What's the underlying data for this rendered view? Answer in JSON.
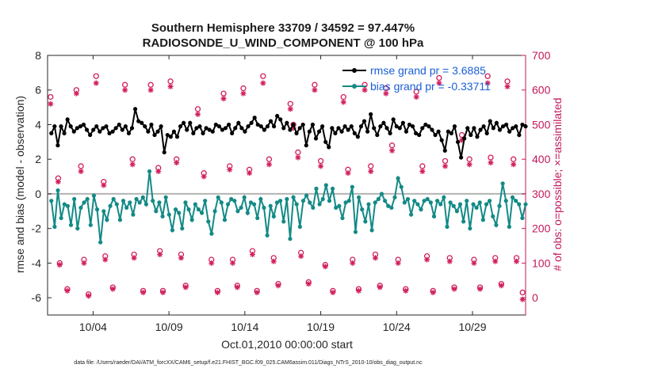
{
  "chart_data": {
    "type": "line",
    "title": "Southern Hemisphere 33709 / 34592 = 97.447%",
    "subtitle": "RADIOSONDE_U_WIND_COMPONENT @ 100 hPa",
    "xlabel": "Oct.01,2010 00:00:00 start",
    "ylabel_left": "rmse and bias (model - observation)",
    "ylabel_right": "# of obs: o=possible; ×=assimilated",
    "footer": "data file: /Users/raeder/DAI/ATM_forcXX/CAM6_setup/f.e21.FHIST_BGC.f09_025.CAM6assim.011/Diags_NTrS_2010-10/obs_diag_output.nc",
    "xlim": [
      1.0,
      32.5
    ],
    "ylim_left": [
      -7,
      8
    ],
    "ylim_right": [
      -50,
      700
    ],
    "x_ticks": [
      4,
      9,
      14,
      19,
      24,
      29
    ],
    "x_tick_labels": [
      "10/04",
      "10/09",
      "10/14",
      "10/19",
      "10/24",
      "10/29"
    ],
    "y_left_ticks": [
      -6,
      -4,
      -2,
      0,
      2,
      4,
      6,
      8
    ],
    "y_right_ticks": [
      0,
      100,
      200,
      300,
      400,
      500,
      600,
      700
    ],
    "legend": {
      "position": "top-right",
      "entries": [
        "rmse grand pr = 3.6885",
        "bias grand pr = -0.33711"
      ]
    },
    "colors": {
      "rmse": "#000000",
      "bias": "#138a86",
      "obs": "#d11f5d",
      "zero_line": "#b3b3b3",
      "right_axis": "#c2185b"
    },
    "series": [
      {
        "name": "rmse",
        "values": [
          3.5,
          3.9,
          2.8,
          3.9,
          3.5,
          4.3,
          3.9,
          3.6,
          3.8,
          3.9,
          4.0,
          3.7,
          3.4,
          3.7,
          3.9,
          3.6,
          3.8,
          3.9,
          3.5,
          3.6,
          3.8,
          4.0,
          3.7,
          3.9,
          3.5,
          3.8,
          4.9,
          4.2,
          4.1,
          3.9,
          3.6,
          4.0,
          3.4,
          3.6,
          3.9,
          2.4,
          3.4,
          3.3,
          3.6,
          3.3,
          3.9,
          4.1,
          3.7,
          4.1,
          3.5,
          3.8,
          3.9,
          3.5,
          3.8,
          3.7,
          3.6,
          4.0,
          3.9,
          3.7,
          3.8,
          4.0,
          3.5,
          3.8,
          4.1,
          3.8,
          3.6,
          3.9,
          4.1,
          4.4,
          4.0,
          3.9,
          3.7,
          3.9,
          4.2,
          3.9,
          4.5,
          4.3,
          3.8,
          4.1,
          3.7,
          4.0,
          3.5,
          3.8,
          4.0,
          2.8,
          3.6,
          4.0,
          3.2,
          3.6,
          3.9,
          3.0,
          2.7,
          3.8,
          3.5,
          3.8,
          3.6,
          3.9,
          3.7,
          3.9,
          3.5,
          3.3,
          3.9,
          4.2,
          3.6,
          4.6,
          3.8,
          3.4,
          3.9,
          4.1,
          3.8,
          3.5,
          4.3,
          3.9,
          3.8,
          4.1,
          3.6,
          4.0,
          3.9,
          3.5,
          3.4,
          3.8,
          4.0,
          3.9,
          3.7,
          3.4,
          3.6,
          3.1,
          2.5,
          3.6,
          3.5,
          3.9,
          3.0,
          2.1,
          3.2,
          3.8,
          3.4,
          3.8,
          3.3,
          3.7,
          3.9,
          3.5,
          4.2,
          3.8,
          4.1,
          3.7,
          3.9,
          4.0,
          3.6,
          3.8,
          3.9,
          3.4,
          4.0,
          3.9
        ]
      },
      {
        "name": "bias",
        "values": [
          -0.4,
          -1.9,
          0.2,
          -1.4,
          -0.6,
          -0.7,
          -1.8,
          -0.3,
          -2.0,
          -0.8,
          -0.5,
          -0.3,
          -1.8,
          -0.1,
          -0.9,
          -2.8,
          -1.0,
          -1.5,
          -0.7,
          -0.3,
          -0.6,
          -1.5,
          -0.4,
          -0.8,
          -0.5,
          -1.2,
          -0.3,
          -0.5,
          -0.2,
          -0.6,
          1.3,
          -0.4,
          -1.0,
          -0.5,
          -1.3,
          -0.2,
          -1.2,
          -2.1,
          -0.9,
          -1.1,
          -2.0,
          -0.5,
          -0.9,
          -1.5,
          -0.6,
          -0.9,
          -1.1,
          -0.4,
          -1.6,
          -2.3,
          -1.0,
          -0.2,
          -0.5,
          -1.5,
          -0.6,
          -0.3,
          -0.4,
          -1.0,
          -0.8,
          -0.2,
          -1.1,
          -0.5,
          -0.6,
          -1.4,
          -0.3,
          -0.8,
          -2.4,
          -0.7,
          -1.3,
          -0.5,
          -0.4,
          -1.6,
          -0.3,
          -2.6,
          -0.2,
          -0.6,
          -1.9,
          -0.4,
          -0.1,
          -0.5,
          -0.8,
          0.3,
          -0.6,
          -0.3,
          0.5,
          -0.4,
          0.3,
          -0.8,
          -0.7,
          -1.4,
          -0.5,
          -0.4,
          0.4,
          -2.2,
          -0.2,
          -0.9,
          -1.6,
          -0.6,
          -2.1,
          -0.5,
          -0.3,
          0.0,
          -0.4,
          -0.7,
          -0.8,
          -0.2,
          0.9,
          0.4,
          -0.5,
          -0.3,
          -1.2,
          -0.4,
          -0.6,
          -0.9,
          -0.4,
          -0.3,
          -0.5,
          -1.3,
          -0.4,
          -0.6,
          -0.2,
          -1.9,
          -0.5,
          -0.7,
          -1.0,
          -0.6,
          -1.6,
          -0.4,
          -2.0,
          -0.6,
          -0.8,
          -0.5,
          -1.5,
          -0.6,
          -0.4,
          -1.3,
          -1.8,
          -0.7,
          0.6,
          -0.4,
          -1.9,
          -0.2,
          -0.4,
          -0.6,
          -1.4,
          -0.6
        ]
      }
    ],
    "obs_possible": [
      {
        "x": 1.2,
        "n": 580
      },
      {
        "x": 1.7,
        "n": 345
      },
      {
        "x": 1.8,
        "n": 100
      },
      {
        "x": 2.3,
        "n": 25
      },
      {
        "x": 2.9,
        "n": 600
      },
      {
        "x": 3.2,
        "n": 380
      },
      {
        "x": 3.4,
        "n": 110
      },
      {
        "x": 3.7,
        "n": 10
      },
      {
        "x": 4.2,
        "n": 640
      },
      {
        "x": 4.7,
        "n": 335
      },
      {
        "x": 4.8,
        "n": 120
      },
      {
        "x": 5.3,
        "n": 30
      },
      {
        "x": 6.1,
        "n": 615
      },
      {
        "x": 6.6,
        "n": 400
      },
      {
        "x": 6.7,
        "n": 125
      },
      {
        "x": 7.3,
        "n": 20
      },
      {
        "x": 7.8,
        "n": 615
      },
      {
        "x": 8.3,
        "n": 375
      },
      {
        "x": 8.4,
        "n": 135
      },
      {
        "x": 8.6,
        "n": 20
      },
      {
        "x": 9.1,
        "n": 625
      },
      {
        "x": 9.5,
        "n": 400
      },
      {
        "x": 9.8,
        "n": 125
      },
      {
        "x": 10.1,
        "n": 35
      },
      {
        "x": 10.9,
        "n": 545
      },
      {
        "x": 11.3,
        "n": 360
      },
      {
        "x": 11.8,
        "n": 110
      },
      {
        "x": 12.2,
        "n": 20
      },
      {
        "x": 12.6,
        "n": 590
      },
      {
        "x": 13.0,
        "n": 380
      },
      {
        "x": 13.2,
        "n": 110
      },
      {
        "x": 13.5,
        "n": 35
      },
      {
        "x": 13.9,
        "n": 605
      },
      {
        "x": 14.3,
        "n": 370
      },
      {
        "x": 14.5,
        "n": 135
      },
      {
        "x": 14.8,
        "n": 20
      },
      {
        "x": 15.2,
        "n": 640
      },
      {
        "x": 15.6,
        "n": 400
      },
      {
        "x": 15.9,
        "n": 115
      },
      {
        "x": 16.2,
        "n": 40
      },
      {
        "x": 17.0,
        "n": 560
      },
      {
        "x": 17.2,
        "n": 500
      },
      {
        "x": 17.5,
        "n": 420
      },
      {
        "x": 17.7,
        "n": 130
      },
      {
        "x": 18.2,
        "n": 45
      },
      {
        "x": 18.6,
        "n": 615
      },
      {
        "x": 19.0,
        "n": 395
      },
      {
        "x": 19.3,
        "n": 95
      },
      {
        "x": 19.8,
        "n": 20
      },
      {
        "x": 20.5,
        "n": 580
      },
      {
        "x": 20.8,
        "n": 370
      },
      {
        "x": 21.1,
        "n": 110
      },
      {
        "x": 21.5,
        "n": 25
      },
      {
        "x": 21.9,
        "n": 615
      },
      {
        "x": 22.3,
        "n": 380
      },
      {
        "x": 22.6,
        "n": 125
      },
      {
        "x": 22.9,
        "n": 35
      },
      {
        "x": 23.3,
        "n": 605
      },
      {
        "x": 23.7,
        "n": 440
      },
      {
        "x": 24.1,
        "n": 110
      },
      {
        "x": 24.6,
        "n": 25
      },
      {
        "x": 25.3,
        "n": 595
      },
      {
        "x": 25.7,
        "n": 380
      },
      {
        "x": 26.0,
        "n": 120
      },
      {
        "x": 26.4,
        "n": 20
      },
      {
        "x": 26.8,
        "n": 635
      },
      {
        "x": 27.2,
        "n": 395
      },
      {
        "x": 27.5,
        "n": 115
      },
      {
        "x": 27.8,
        "n": 30
      },
      {
        "x": 28.3,
        "n": 470
      },
      {
        "x": 28.8,
        "n": 400
      },
      {
        "x": 29.1,
        "n": 110
      },
      {
        "x": 29.5,
        "n": 30
      },
      {
        "x": 30.0,
        "n": 640
      },
      {
        "x": 30.2,
        "n": 405
      },
      {
        "x": 30.5,
        "n": 115
      },
      {
        "x": 30.9,
        "n": 40
      },
      {
        "x": 31.3,
        "n": 625
      },
      {
        "x": 31.7,
        "n": 400
      },
      {
        "x": 31.9,
        "n": 115
      },
      {
        "x": 32.3,
        "n": 15
      }
    ],
    "obs_assimilated": [
      {
        "x": 1.2,
        "n": 560
      },
      {
        "x": 1.7,
        "n": 335
      },
      {
        "x": 1.8,
        "n": 95
      },
      {
        "x": 2.3,
        "n": 20
      },
      {
        "x": 2.9,
        "n": 590
      },
      {
        "x": 3.2,
        "n": 365
      },
      {
        "x": 3.4,
        "n": 100
      },
      {
        "x": 3.7,
        "n": 5
      },
      {
        "x": 4.2,
        "n": 620
      },
      {
        "x": 4.7,
        "n": 325
      },
      {
        "x": 4.8,
        "n": 110
      },
      {
        "x": 5.3,
        "n": 25
      },
      {
        "x": 6.1,
        "n": 600
      },
      {
        "x": 6.6,
        "n": 385
      },
      {
        "x": 6.7,
        "n": 115
      },
      {
        "x": 7.3,
        "n": 15
      },
      {
        "x": 7.8,
        "n": 600
      },
      {
        "x": 8.3,
        "n": 365
      },
      {
        "x": 8.4,
        "n": 125
      },
      {
        "x": 8.6,
        "n": 15
      },
      {
        "x": 9.1,
        "n": 610
      },
      {
        "x": 9.5,
        "n": 390
      },
      {
        "x": 9.8,
        "n": 115
      },
      {
        "x": 10.1,
        "n": 30
      },
      {
        "x": 10.9,
        "n": 530
      },
      {
        "x": 11.3,
        "n": 350
      },
      {
        "x": 11.8,
        "n": 100
      },
      {
        "x": 12.2,
        "n": 15
      },
      {
        "x": 12.6,
        "n": 575
      },
      {
        "x": 13.0,
        "n": 370
      },
      {
        "x": 13.2,
        "n": 100
      },
      {
        "x": 13.5,
        "n": 30
      },
      {
        "x": 13.9,
        "n": 590
      },
      {
        "x": 14.3,
        "n": 360
      },
      {
        "x": 14.5,
        "n": 125
      },
      {
        "x": 14.8,
        "n": 15
      },
      {
        "x": 15.2,
        "n": 620
      },
      {
        "x": 15.6,
        "n": 385
      },
      {
        "x": 15.9,
        "n": 105
      },
      {
        "x": 16.2,
        "n": 35
      },
      {
        "x": 17.0,
        "n": 545
      },
      {
        "x": 17.2,
        "n": 490
      },
      {
        "x": 17.5,
        "n": 405
      },
      {
        "x": 17.7,
        "n": 120
      },
      {
        "x": 18.2,
        "n": 40
      },
      {
        "x": 18.6,
        "n": 600
      },
      {
        "x": 19.0,
        "n": 380
      },
      {
        "x": 19.3,
        "n": 90
      },
      {
        "x": 19.8,
        "n": 15
      },
      {
        "x": 20.5,
        "n": 565
      },
      {
        "x": 20.8,
        "n": 360
      },
      {
        "x": 21.1,
        "n": 100
      },
      {
        "x": 21.5,
        "n": 20
      },
      {
        "x": 21.9,
        "n": 600
      },
      {
        "x": 22.3,
        "n": 365
      },
      {
        "x": 22.6,
        "n": 115
      },
      {
        "x": 22.9,
        "n": 30
      },
      {
        "x": 23.3,
        "n": 590
      },
      {
        "x": 23.7,
        "n": 425
      },
      {
        "x": 24.1,
        "n": 100
      },
      {
        "x": 24.6,
        "n": 20
      },
      {
        "x": 25.3,
        "n": 580
      },
      {
        "x": 25.7,
        "n": 365
      },
      {
        "x": 26.0,
        "n": 110
      },
      {
        "x": 26.4,
        "n": 15
      },
      {
        "x": 26.8,
        "n": 620
      },
      {
        "x": 27.2,
        "n": 380
      },
      {
        "x": 27.5,
        "n": 105
      },
      {
        "x": 27.8,
        "n": 25
      },
      {
        "x": 28.3,
        "n": 455
      },
      {
        "x": 28.8,
        "n": 385
      },
      {
        "x": 29.1,
        "n": 100
      },
      {
        "x": 29.5,
        "n": 25
      },
      {
        "x": 30.0,
        "n": 620
      },
      {
        "x": 30.2,
        "n": 390
      },
      {
        "x": 30.5,
        "n": 105
      },
      {
        "x": 30.9,
        "n": 35
      },
      {
        "x": 31.3,
        "n": 610
      },
      {
        "x": 31.7,
        "n": 385
      },
      {
        "x": 31.9,
        "n": 105
      },
      {
        "x": 32.3,
        "n": -5
      }
    ]
  }
}
